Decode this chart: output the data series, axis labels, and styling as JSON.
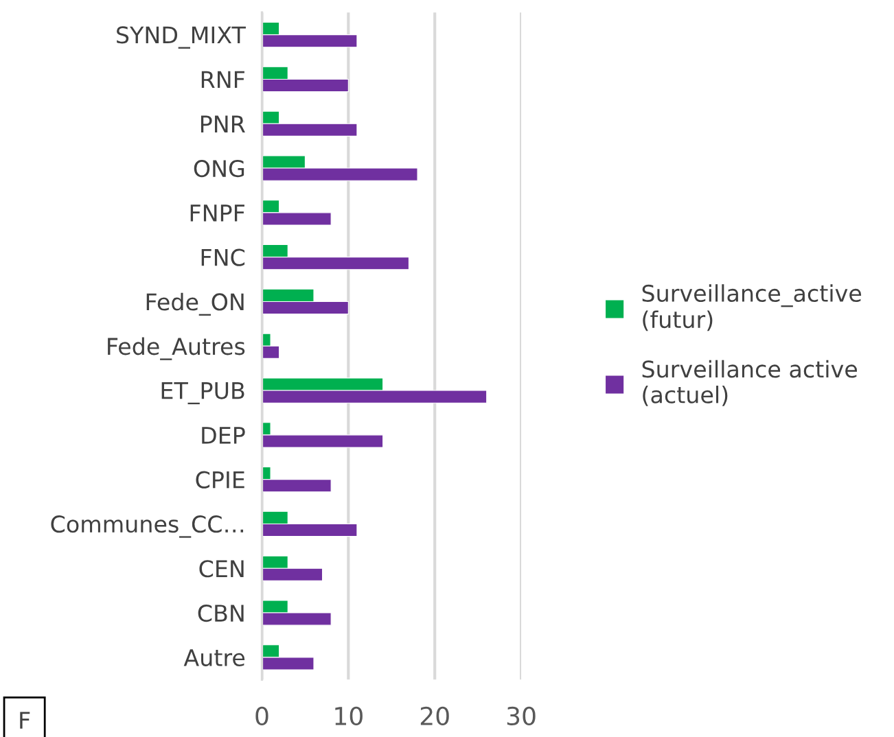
{
  "chart_data": {
    "type": "bar",
    "orientation": "horizontal",
    "categories": [
      "SYND_MIXT",
      "RNF",
      "PNR",
      "ONG",
      "FNPF",
      "FNC",
      "Fede_ON",
      "Fede_Autres",
      "ET_PUB",
      "DEP",
      "CPIE",
      "Communes_CC…",
      "CEN",
      "CBN",
      "Autre"
    ],
    "series": [
      {
        "name": "Surveillance_active (futur)",
        "color": "#00b050",
        "values": [
          2,
          3,
          2,
          5,
          2,
          3,
          6,
          1,
          14,
          1,
          1,
          3,
          3,
          3,
          2
        ]
      },
      {
        "name": "Surveillance active (actuel)",
        "color": "#7030a0",
        "values": [
          11,
          10,
          11,
          18,
          8,
          17,
          10,
          2,
          26,
          14,
          8,
          11,
          7,
          8,
          6
        ]
      }
    ],
    "xlim": [
      0,
      30
    ],
    "xticks": [
      0,
      10,
      20,
      30
    ],
    "grid": "x",
    "legend": "right",
    "annotations": [
      "F"
    ]
  }
}
